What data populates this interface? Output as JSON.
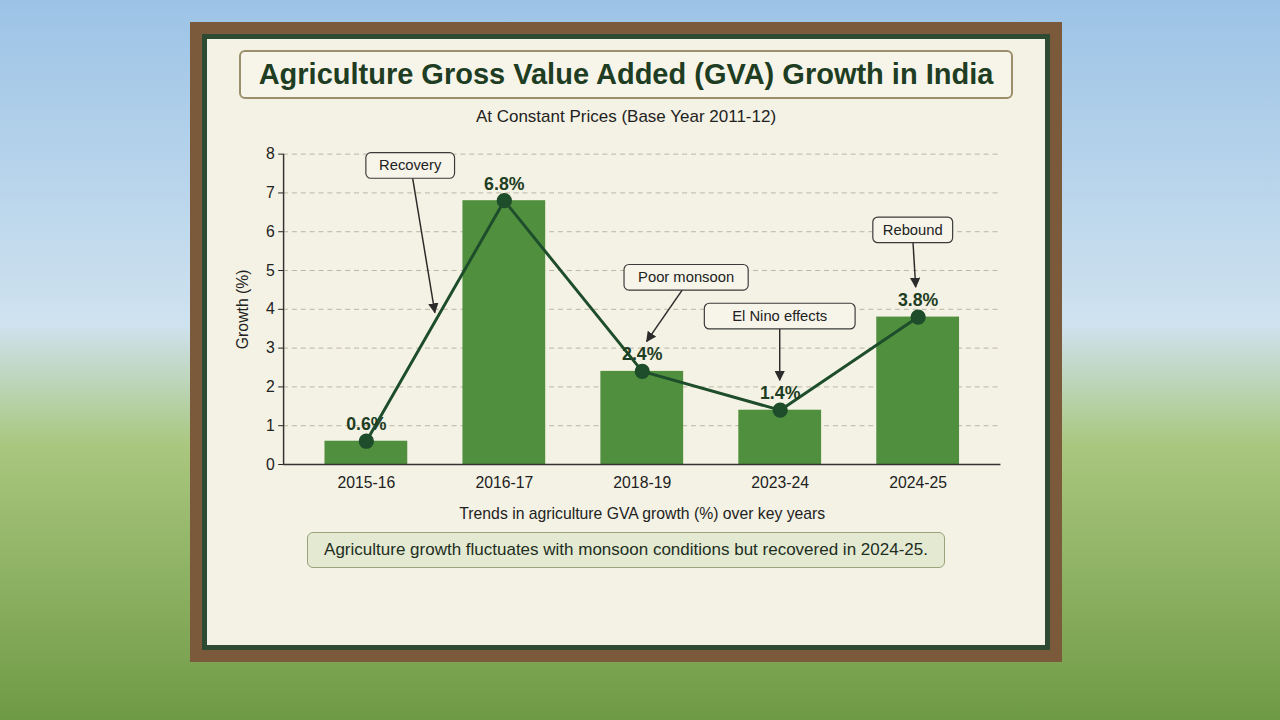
{
  "chart_data": {
    "type": "bar",
    "title": "Agriculture Gross Value Added (GVA) Growth in India",
    "subtitle": "At Constant Prices (Base Year 2011-12)",
    "x_label": "Trends in agriculture GVA growth (%) over key years",
    "y_label": "Growth (%)",
    "caption": "Agriculture growth fluctuates with monsoon conditions but recovered in 2024-25.",
    "categories": [
      "2015-16",
      "2016-17",
      "2018-19",
      "2023-24",
      "2024-25"
    ],
    "series": [
      {
        "type": "bar",
        "color": "#4f8f3e",
        "values": [
          0.6,
          6.8,
          2.4,
          1.4,
          3.8
        ]
      },
      {
        "type": "line",
        "color": "#1e4d2b",
        "marker": "circle",
        "values": [
          0.6,
          6.8,
          2.4,
          1.4,
          3.8
        ],
        "value_labels": [
          "0.6%",
          "6.8%",
          "2.4%",
          "1.4%",
          "3.8%"
        ]
      }
    ],
    "ylim": [
      0,
      8
    ],
    "yticks": [
      0,
      1,
      2,
      3,
      4,
      5,
      6,
      7,
      8
    ],
    "grid": true,
    "data_labels": true,
    "annotations": [
      {
        "text": "Recovery",
        "category": "2016-17"
      },
      {
        "text": "Poor monsoon",
        "category": "2018-19"
      },
      {
        "text": "El Nino effects",
        "category": "2023-24"
      },
      {
        "text": "Rebound",
        "category": "2024-25"
      }
    ]
  }
}
